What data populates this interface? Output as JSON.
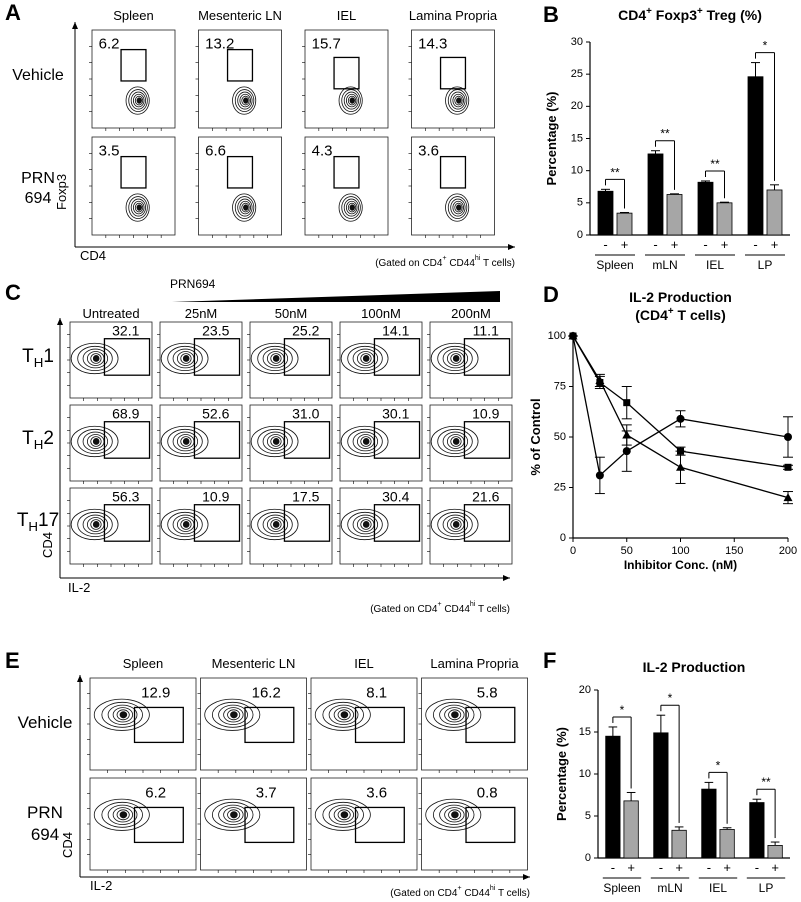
{
  "flow_panels": [
    {
      "label": "A",
      "columns": [
        "Spleen",
        "Mesenteric LN",
        "IEL",
        "Lamina Propria"
      ],
      "rows": [
        {
          "label": [
            "Vehicle"
          ],
          "gates": [
            "6.2",
            "13.2",
            "15.7",
            "14.3"
          ]
        },
        {
          "label": [
            "PRN",
            "694"
          ],
          "gates": [
            "3.5",
            "6.6",
            "4.3",
            "3.6"
          ]
        }
      ],
      "y_axis": "Foxp3",
      "x_axis": "CD4",
      "note": [
        "(Gated on CD4",
        "+",
        " CD44",
        "hi",
        " T cells)"
      ]
    },
    {
      "label": "C",
      "treatment": "PRN694",
      "columns": [
        "Untreated",
        "25nM",
        "50nM",
        "100nM",
        "200nM"
      ],
      "rows": [
        {
          "label": [
            "T",
            "H",
            "1"
          ],
          "gates": [
            "32.1",
            "23.5",
            "25.2",
            "14.1",
            "11.1"
          ]
        },
        {
          "label": [
            "T",
            "H",
            "2"
          ],
          "gates": [
            "68.9",
            "52.6",
            "31.0",
            "30.1",
            "10.9"
          ]
        },
        {
          "label": [
            "T",
            "H",
            "17"
          ],
          "gates": [
            "56.3",
            "10.9",
            "17.5",
            "30.4",
            "21.6"
          ]
        }
      ],
      "y_axis": "CD4",
      "x_axis": "IL-2",
      "note": [
        "(Gated on CD4",
        "+",
        " CD44",
        "hi",
        " T cells)"
      ]
    },
    {
      "label": "E",
      "columns": [
        "Spleen",
        "Mesenteric LN",
        "IEL",
        "Lamina Propria"
      ],
      "rows": [
        {
          "label": [
            "Vehicle"
          ],
          "gates": [
            "12.9",
            "16.2",
            "8.1",
            "5.8"
          ]
        },
        {
          "label": [
            "PRN",
            "694"
          ],
          "gates": [
            "6.2",
            "3.7",
            "3.6",
            "0.8"
          ]
        }
      ],
      "y_axis": "CD4",
      "x_axis": "IL-2",
      "note": [
        "(Gated on CD4",
        "+",
        " CD44",
        "hi",
        " T cells)"
      ]
    }
  ],
  "chart_data": [
    {
      "type": "bar",
      "label": "B",
      "title": [
        "CD4",
        "+",
        " Foxp3",
        "+",
        " Treg (%)"
      ],
      "y_label": "Percentage (%)",
      "categories": [
        "Spleen",
        "mLN",
        "IEL",
        "LP"
      ],
      "series": [
        {
          "name": "-",
          "color": "#000000",
          "values": [
            6.8,
            12.6,
            8.2,
            24.6
          ],
          "errors": [
            0.3,
            0.5,
            0.2,
            2.2
          ]
        },
        {
          "name": "+",
          "color": "#a6a6a6",
          "values": [
            3.4,
            6.3,
            5.0,
            7.0
          ],
          "errors": [
            0.1,
            0.1,
            0.1,
            0.8
          ]
        }
      ],
      "significance": [
        "**",
        "**",
        "**",
        "*"
      ],
      "ylim": [
        0,
        30
      ],
      "yticks": [
        0,
        5,
        10,
        15,
        20,
        25,
        30
      ]
    },
    {
      "type": "line",
      "label": "D",
      "title": "IL-2 Production",
      "subtitle": [
        "(CD4",
        "+",
        " T cells)"
      ],
      "y_label": "% of Control",
      "x_label": "Inhibitor Conc. (nM)",
      "x": [
        0,
        25,
        50,
        100,
        200
      ],
      "series": [
        {
          "marker": "circle",
          "color": "#000000",
          "values": [
            100,
            31,
            43,
            59,
            50
          ],
          "errors": [
            0,
            9,
            10,
            4,
            10
          ]
        },
        {
          "marker": "square",
          "color": "#000000",
          "values": [
            100,
            77,
            67,
            43,
            35
          ],
          "errors": [
            0,
            3,
            8,
            2,
            1
          ]
        },
        {
          "marker": "triangle",
          "color": "#000000",
          "values": [
            100,
            78,
            51,
            35,
            20
          ],
          "errors": [
            0,
            3,
            5,
            8,
            3
          ]
        }
      ],
      "xlim": [
        0,
        200
      ],
      "xticks": [
        0,
        50,
        100,
        150,
        200
      ],
      "ylim": [
        0,
        100
      ],
      "yticks": [
        0,
        25,
        50,
        75,
        100
      ]
    },
    {
      "type": "bar",
      "label": "F",
      "title": "IL-2 Production",
      "y_label": "Percentage (%)",
      "categories": [
        "Spleen",
        "mLN",
        "IEL",
        "LP"
      ],
      "series": [
        {
          "name": "-",
          "color": "#000000",
          "values": [
            14.5,
            14.9,
            8.2,
            6.6
          ],
          "errors": [
            1.1,
            2.1,
            0.8,
            0.4
          ]
        },
        {
          "name": "+",
          "color": "#a6a6a6",
          "values": [
            6.8,
            3.3,
            3.4,
            1.5
          ],
          "errors": [
            1.0,
            0.4,
            0.2,
            0.4
          ]
        }
      ],
      "significance": [
        "*",
        "*",
        "*",
        "**"
      ],
      "ylim": [
        0,
        20
      ],
      "yticks": [
        0,
        5,
        10,
        15,
        20
      ]
    }
  ]
}
